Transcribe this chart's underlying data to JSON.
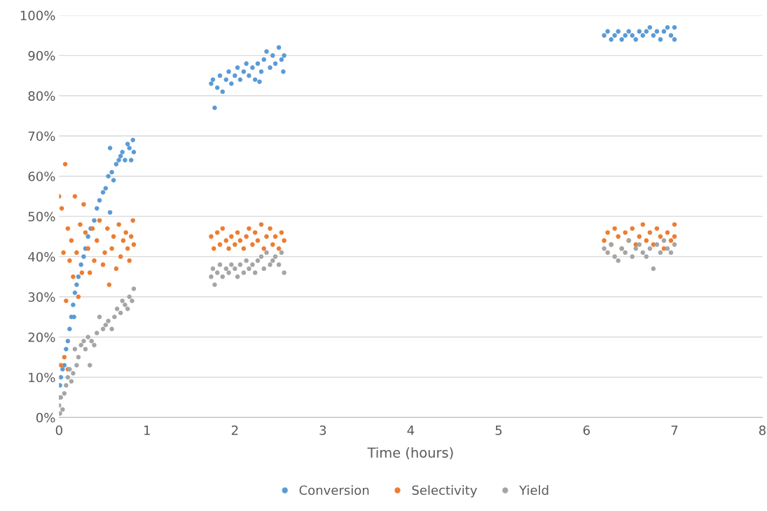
{
  "chart_data": {
    "type": "scatter",
    "xlabel": "Time (hours)",
    "xlim": [
      0,
      8
    ],
    "xticks": [
      0,
      1,
      2,
      3,
      4,
      5,
      6,
      7,
      8
    ],
    "ylim": [
      0,
      100
    ],
    "yticks": [
      {
        "value": 0,
        "label": "0%"
      },
      {
        "value": 10,
        "label": "10%"
      },
      {
        "value": 20,
        "label": "20%"
      },
      {
        "value": 30,
        "label": "30%"
      },
      {
        "value": 40,
        "label": "40%"
      },
      {
        "value": 50,
        "label": "50%"
      },
      {
        "value": 60,
        "label": "60%"
      },
      {
        "value": 70,
        "label": "70%"
      },
      {
        "value": 80,
        "label": "80%"
      },
      {
        "value": 90,
        "label": "90%"
      },
      {
        "value": 100,
        "label": "100%"
      }
    ],
    "grid": "y",
    "legend": "bottom",
    "marker": "circle",
    "series": [
      {
        "name": "Conversion",
        "color": "#5b9bd5",
        "x": [
          0.0,
          0.01,
          0.02,
          0.04,
          0.06,
          0.08,
          0.1,
          0.12,
          0.14,
          0.16,
          0.17,
          0.18,
          0.2,
          0.22,
          0.25,
          0.28,
          0.3,
          0.33,
          0.36,
          0.4,
          0.43,
          0.46,
          0.5,
          0.53,
          0.56,
          0.58,
          0.58,
          0.6,
          0.62,
          0.65,
          0.68,
          0.7,
          0.72,
          0.75,
          0.78,
          0.8,
          0.82,
          0.84,
          0.85,
          1.73,
          1.75,
          1.77,
          1.8,
          1.83,
          1.86,
          1.9,
          1.93,
          1.96,
          2.0,
          2.03,
          2.06,
          2.1,
          2.13,
          2.16,
          2.2,
          2.23,
          2.26,
          2.28,
          2.3,
          2.33,
          2.36,
          2.4,
          2.43,
          2.46,
          2.5,
          2.53,
          2.55,
          2.56,
          6.2,
          6.24,
          6.28,
          6.32,
          6.36,
          6.4,
          6.44,
          6.48,
          6.52,
          6.56,
          6.6,
          6.64,
          6.68,
          6.72,
          6.76,
          6.8,
          6.84,
          6.88,
          6.92,
          6.96,
          7.0,
          7.0
        ],
        "values": [
          5,
          8,
          10,
          12,
          13,
          17,
          19,
          22,
          25,
          28,
          25,
          31,
          33,
          35,
          38,
          40,
          42,
          45,
          47,
          49,
          52,
          54,
          56,
          57,
          60,
          67,
          51,
          61,
          59,
          63,
          64,
          65,
          66,
          64,
          68,
          67,
          64,
          69,
          66,
          83,
          84,
          77,
          82,
          85,
          81,
          84,
          86,
          83,
          85,
          87,
          84,
          86,
          88,
          85,
          87,
          84,
          88,
          83.5,
          86,
          89,
          91,
          87,
          90,
          88,
          92,
          89,
          86,
          90,
          95,
          96,
          94,
          95,
          96,
          94,
          95,
          96,
          95,
          94,
          96,
          95,
          96,
          97,
          95,
          96,
          94,
          96,
          97,
          95,
          94,
          97
        ]
      },
      {
        "name": "Selectivity",
        "color": "#ed7d31",
        "x": [
          0.0,
          0.02,
          0.03,
          0.05,
          0.06,
          0.07,
          0.08,
          0.1,
          0.1,
          0.12,
          0.14,
          0.16,
          0.18,
          0.2,
          0.22,
          0.24,
          0.26,
          0.28,
          0.3,
          0.33,
          0.35,
          0.38,
          0.4,
          0.43,
          0.46,
          0.5,
          0.52,
          0.55,
          0.57,
          0.6,
          0.62,
          0.65,
          0.68,
          0.7,
          0.73,
          0.76,
          0.78,
          0.8,
          0.82,
          0.84,
          0.85,
          1.73,
          1.76,
          1.8,
          1.83,
          1.86,
          1.9,
          1.93,
          1.96,
          2.0,
          2.03,
          2.06,
          2.1,
          2.13,
          2.16,
          2.2,
          2.23,
          2.26,
          2.3,
          2.33,
          2.36,
          2.4,
          2.43,
          2.46,
          2.5,
          2.53,
          2.56,
          6.2,
          6.24,
          6.28,
          6.32,
          6.36,
          6.4,
          6.44,
          6.48,
          6.52,
          6.56,
          6.6,
          6.64,
          6.68,
          6.72,
          6.76,
          6.8,
          6.84,
          6.88,
          6.92,
          6.96,
          7.0,
          7.0
        ],
        "values": [
          55,
          13,
          52,
          41,
          15,
          63,
          29,
          47,
          12,
          39,
          44,
          35,
          55,
          41,
          30,
          48,
          36,
          53,
          46,
          42,
          36,
          47,
          39,
          44,
          49,
          38,
          41,
          47,
          33,
          42,
          45,
          37,
          48,
          40,
          44,
          46,
          42,
          39,
          45,
          49,
          43,
          45,
          42,
          46,
          43,
          47,
          44,
          42,
          45,
          43,
          46,
          44,
          42,
          45,
          47,
          43,
          46,
          44,
          48,
          42,
          45,
          47,
          43,
          45,
          42,
          46,
          44,
          44,
          46,
          43,
          47,
          45,
          42,
          46,
          44,
          47,
          43,
          45,
          48,
          44,
          46,
          43,
          47,
          45,
          42,
          46,
          44,
          48,
          45
        ]
      },
      {
        "name": "Yield",
        "color": "#a5a5a5",
        "x": [
          0.0,
          0.01,
          0.02,
          0.04,
          0.06,
          0.08,
          0.1,
          0.12,
          0.14,
          0.16,
          0.18,
          0.2,
          0.22,
          0.25,
          0.28,
          0.3,
          0.33,
          0.35,
          0.37,
          0.4,
          0.43,
          0.46,
          0.5,
          0.53,
          0.56,
          0.6,
          0.63,
          0.66,
          0.7,
          0.72,
          0.75,
          0.78,
          0.8,
          0.83,
          0.85,
          1.73,
          1.75,
          1.77,
          1.8,
          1.83,
          1.86,
          1.9,
          1.93,
          1.96,
          2.0,
          2.03,
          2.06,
          2.1,
          2.13,
          2.16,
          2.2,
          2.23,
          2.26,
          2.3,
          2.33,
          2.36,
          2.4,
          2.43,
          2.46,
          2.5,
          2.53,
          2.56,
          6.2,
          6.24,
          6.28,
          6.32,
          6.36,
          6.4,
          6.44,
          6.48,
          6.52,
          6.56,
          6.6,
          6.64,
          6.68,
          6.72,
          6.76,
          6.8,
          6.84,
          6.88,
          6.92,
          6.96,
          7.0
        ],
        "values": [
          3,
          1,
          5,
          2,
          6,
          8,
          10,
          12,
          9,
          11,
          17,
          13,
          15,
          18,
          19,
          17,
          20,
          13,
          19,
          18,
          21,
          25,
          22,
          23,
          24,
          22,
          25,
          27,
          26,
          29,
          28,
          27,
          30,
          29,
          32,
          35,
          37,
          33,
          36,
          38,
          35,
          37,
          36,
          38,
          37,
          35,
          38,
          36,
          39,
          37,
          38,
          36,
          39,
          40,
          37,
          41,
          38,
          39,
          40,
          38,
          41,
          36,
          42,
          41,
          43,
          40,
          39,
          42,
          41,
          44,
          40,
          42,
          43,
          41,
          40,
          42,
          37,
          43,
          41,
          44,
          42,
          41,
          43
        ]
      }
    ]
  }
}
